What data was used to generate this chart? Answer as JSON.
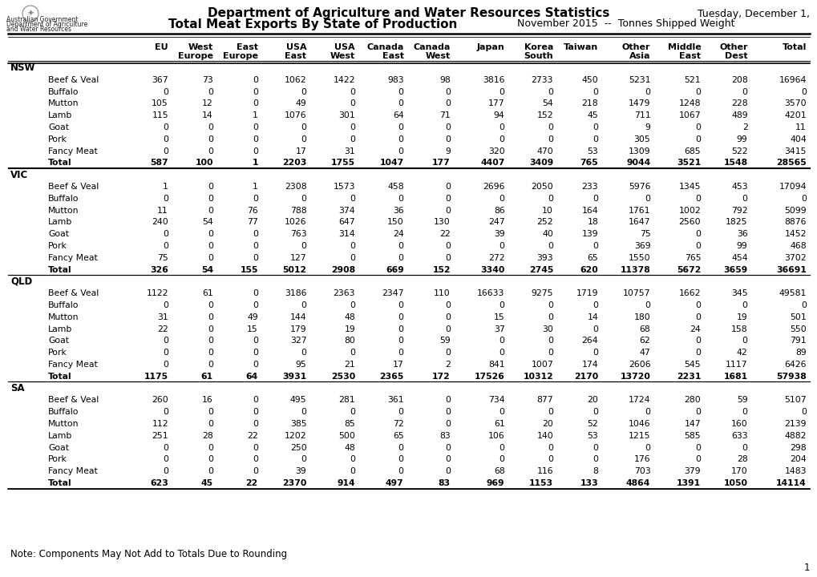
{
  "title1": "Department of Agriculture and Water Resources Statistics",
  "title2": "Total Meat Exports By State of Production",
  "subtitle": "November 2015  --  Tonnes Shipped Weight",
  "date": "Tuesday, December 1,",
  "note": "Note: Components May Not Add to Totals Due to Rounding",
  "page": "1",
  "col_headers_line1": [
    "EU",
    "West",
    "East",
    "USA",
    "USA",
    "Canada",
    "Canada",
    "Japan",
    "Korea",
    "Taiwan",
    "Other",
    "Middle",
    "Other",
    "Total"
  ],
  "col_headers_line2": [
    "",
    "Europe",
    "Europe",
    "East",
    "West",
    "East",
    "West",
    "",
    "South",
    "",
    "Asia",
    "East",
    "Dest",
    ""
  ],
  "states": [
    "NSW",
    "VIC",
    "QLD",
    "SA"
  ],
  "meat_types": [
    "Beef & Veal",
    "Buffalo",
    "Mutton",
    "Lamb",
    "Goat",
    "Pork",
    "Fancy Meat",
    "Total"
  ],
  "data": {
    "NSW": {
      "Beef & Veal": [
        367,
        73,
        0,
        1062,
        1422,
        983,
        98,
        3816,
        2733,
        450,
        5231,
        521,
        208,
        16964
      ],
      "Buffalo": [
        0,
        0,
        0,
        0,
        0,
        0,
        0,
        0,
        0,
        0,
        0,
        0,
        0,
        0
      ],
      "Mutton": [
        105,
        12,
        0,
        49,
        0,
        0,
        0,
        177,
        54,
        218,
        1479,
        1248,
        228,
        3570
      ],
      "Lamb": [
        115,
        14,
        1,
        1076,
        301,
        64,
        71,
        94,
        152,
        45,
        711,
        1067,
        489,
        4201
      ],
      "Goat": [
        0,
        0,
        0,
        0,
        0,
        0,
        0,
        0,
        0,
        0,
        9,
        0,
        2,
        11
      ],
      "Pork": [
        0,
        0,
        0,
        0,
        0,
        0,
        0,
        0,
        0,
        0,
        305,
        0,
        99,
        404
      ],
      "Fancy Meat": [
        0,
        0,
        0,
        17,
        31,
        0,
        9,
        320,
        470,
        53,
        1309,
        685,
        522,
        3415
      ],
      "Total": [
        587,
        100,
        1,
        2203,
        1755,
        1047,
        177,
        4407,
        3409,
        765,
        9044,
        3521,
        1548,
        28565
      ]
    },
    "VIC": {
      "Beef & Veal": [
        1,
        0,
        1,
        2308,
        1573,
        458,
        0,
        2696,
        2050,
        233,
        5976,
        1345,
        453,
        17094
      ],
      "Buffalo": [
        0,
        0,
        0,
        0,
        0,
        0,
        0,
        0,
        0,
        0,
        0,
        0,
        0,
        0
      ],
      "Mutton": [
        11,
        0,
        76,
        788,
        374,
        36,
        0,
        86,
        10,
        164,
        1761,
        1002,
        792,
        5099
      ],
      "Lamb": [
        240,
        54,
        77,
        1026,
        647,
        150,
        130,
        247,
        252,
        18,
        1647,
        2560,
        1825,
        8876
      ],
      "Goat": [
        0,
        0,
        0,
        763,
        314,
        24,
        22,
        39,
        40,
        139,
        75,
        0,
        36,
        1452
      ],
      "Pork": [
        0,
        0,
        0,
        0,
        0,
        0,
        0,
        0,
        0,
        0,
        369,
        0,
        99,
        468
      ],
      "Fancy Meat": [
        75,
        0,
        0,
        127,
        0,
        0,
        0,
        272,
        393,
        65,
        1550,
        765,
        454,
        3702
      ],
      "Total": [
        326,
        54,
        155,
        5012,
        2908,
        669,
        152,
        3340,
        2745,
        620,
        11378,
        5672,
        3659,
        36691
      ]
    },
    "QLD": {
      "Beef & Veal": [
        1122,
        61,
        0,
        3186,
        2363,
        2347,
        110,
        16633,
        9275,
        1719,
        10757,
        1662,
        345,
        49581
      ],
      "Buffalo": [
        0,
        0,
        0,
        0,
        0,
        0,
        0,
        0,
        0,
        0,
        0,
        0,
        0,
        0
      ],
      "Mutton": [
        31,
        0,
        49,
        144,
        48,
        0,
        0,
        15,
        0,
        14,
        180,
        0,
        19,
        501
      ],
      "Lamb": [
        22,
        0,
        15,
        179,
        19,
        0,
        0,
        37,
        30,
        0,
        68,
        24,
        158,
        550
      ],
      "Goat": [
        0,
        0,
        0,
        327,
        80,
        0,
        59,
        0,
        0,
        264,
        62,
        0,
        0,
        791
      ],
      "Pork": [
        0,
        0,
        0,
        0,
        0,
        0,
        0,
        0,
        0,
        0,
        47,
        0,
        42,
        89
      ],
      "Fancy Meat": [
        0,
        0,
        0,
        95,
        21,
        17,
        2,
        841,
        1007,
        174,
        2606,
        545,
        1117,
        6426
      ],
      "Total": [
        1175,
        61,
        64,
        3931,
        2530,
        2365,
        172,
        17526,
        10312,
        2170,
        13720,
        2231,
        1681,
        57938
      ]
    },
    "SA": {
      "Beef & Veal": [
        260,
        16,
        0,
        495,
        281,
        361,
        0,
        734,
        877,
        20,
        1724,
        280,
        59,
        5107
      ],
      "Buffalo": [
        0,
        0,
        0,
        0,
        0,
        0,
        0,
        0,
        0,
        0,
        0,
        0,
        0,
        0
      ],
      "Mutton": [
        112,
        0,
        0,
        385,
        85,
        72,
        0,
        61,
        20,
        52,
        1046,
        147,
        160,
        2139
      ],
      "Lamb": [
        251,
        28,
        22,
        1202,
        500,
        65,
        83,
        106,
        140,
        53,
        1215,
        585,
        633,
        4882
      ],
      "Goat": [
        0,
        0,
        0,
        250,
        48,
        0,
        0,
        0,
        0,
        0,
        0,
        0,
        0,
        298
      ],
      "Pork": [
        0,
        0,
        0,
        0,
        0,
        0,
        0,
        0,
        0,
        0,
        176,
        0,
        28,
        204
      ],
      "Fancy Meat": [
        0,
        0,
        0,
        39,
        0,
        0,
        0,
        68,
        116,
        8,
        703,
        379,
        170,
        1483
      ],
      "Total": [
        623,
        45,
        22,
        2370,
        914,
        497,
        83,
        969,
        1153,
        133,
        4864,
        1391,
        1050,
        14114
      ]
    }
  }
}
